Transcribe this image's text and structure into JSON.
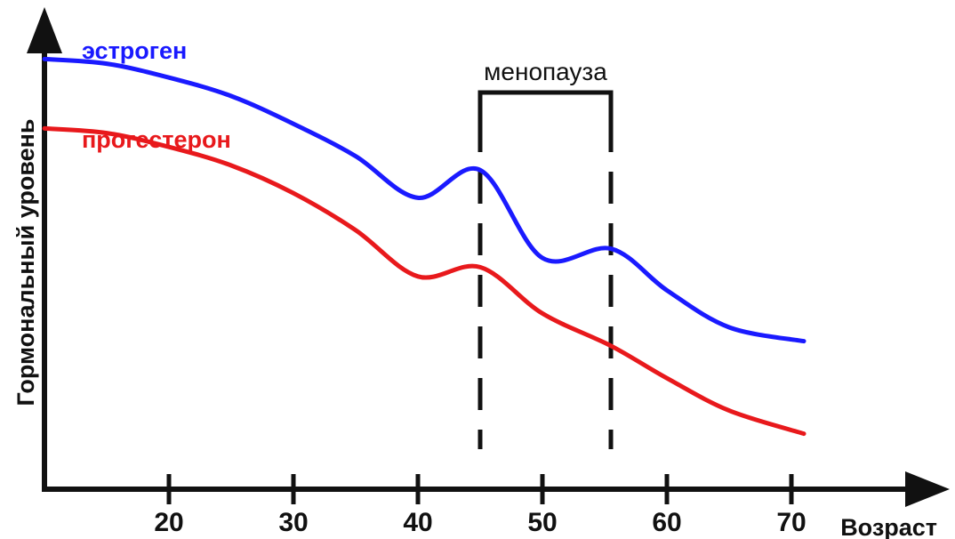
{
  "chart_data": {
    "type": "line",
    "title": "",
    "xlabel": "Возраст",
    "ylabel": "Гормональный уровень",
    "x_ticks": [
      20,
      30,
      40,
      50,
      60,
      70
    ],
    "xlim": [
      10,
      81
    ],
    "ylim": [
      0,
      100
    ],
    "y_ticks_shown": false,
    "grid": false,
    "series": [
      {
        "name": "эстроген",
        "color": "#1a1aff",
        "x": [
          10,
          15,
          20,
          25,
          30,
          35,
          40,
          45,
          50,
          55.5,
          60,
          65,
          71
        ],
        "y": [
          93,
          92,
          89,
          85,
          79,
          72,
          63,
          69,
          50,
          52,
          43,
          35,
          32
        ]
      },
      {
        "name": "прогестерон",
        "color": "#e8191c",
        "x": [
          10,
          15,
          20,
          25,
          30,
          35,
          40,
          45,
          50,
          55.5,
          60,
          65,
          71
        ],
        "y": [
          78,
          77,
          74,
          70,
          64,
          56,
          46,
          48,
          38,
          31,
          24,
          17,
          12
        ]
      }
    ],
    "annotations": [
      {
        "label": "менопауза",
        "x_start": 45,
        "x_end": 55.5
      }
    ]
  }
}
